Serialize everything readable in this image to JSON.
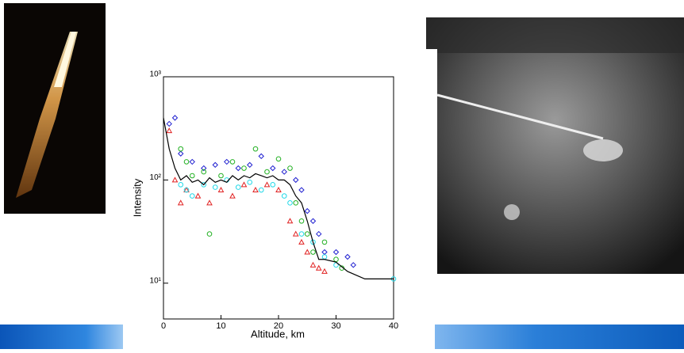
{
  "chart_data": {
    "type": "scatter",
    "x_label": "Altitude, km",
    "y_label": "Intensity",
    "xlim": [
      0,
      40
    ],
    "xticks": [
      0,
      10,
      20,
      30,
      40
    ],
    "ylim": [
      4.5,
      1000
    ],
    "yscale": "log",
    "yticks": [
      {
        "value": 10,
        "label": "10¹"
      },
      {
        "value": 100,
        "label": "10²"
      },
      {
        "value": 1000,
        "label": "10³"
      }
    ],
    "series": [
      {
        "color": "#1f1fd0",
        "marker": "diamond",
        "x": [
          1,
          2,
          3,
          5,
          7,
          9,
          11,
          13,
          15,
          17,
          19,
          21,
          23,
          24,
          25,
          26,
          27,
          28,
          30,
          32,
          33
        ],
        "values": [
          350,
          400,
          180,
          150,
          130,
          140,
          150,
          130,
          140,
          170,
          130,
          120,
          100,
          80,
          50,
          40,
          30,
          20,
          20,
          18,
          15
        ]
      },
      {
        "color": "#e02020",
        "marker": "triangle",
        "x": [
          1,
          2,
          3,
          4,
          6,
          8,
          10,
          12,
          14,
          16,
          18,
          20,
          22,
          23,
          24,
          25,
          26,
          27,
          28
        ],
        "values": [
          300,
          100,
          60,
          80,
          70,
          60,
          80,
          70,
          90,
          80,
          90,
          80,
          40,
          30,
          25,
          20,
          15,
          14,
          13
        ]
      },
      {
        "color": "#22b022",
        "marker": "circle",
        "x": [
          3,
          4,
          5,
          7,
          8,
          10,
          12,
          14,
          16,
          18,
          20,
          22,
          23,
          24,
          25,
          26,
          28,
          30,
          31
        ],
        "values": [
          200,
          150,
          110,
          120,
          30,
          110,
          150,
          130,
          200,
          120,
          160,
          130,
          60,
          40,
          30,
          20,
          25,
          17,
          14
        ]
      },
      {
        "color": "#22d8e8",
        "marker": "circle",
        "x": [
          3,
          4,
          5,
          7,
          9,
          11,
          13,
          15,
          17,
          19,
          21,
          22,
          24,
          26,
          28,
          30,
          40
        ],
        "values": [
          90,
          80,
          70,
          90,
          85,
          100,
          85,
          95,
          80,
          90,
          70,
          60,
          30,
          25,
          18,
          15,
          11
        ]
      },
      {
        "color": "#000000",
        "marker": "line",
        "x": [
          0,
          1,
          2,
          3,
          4,
          5,
          6,
          7,
          8,
          9,
          10,
          11,
          12,
          13,
          14,
          15,
          16,
          17,
          18,
          19,
          20,
          21,
          22,
          23,
          24,
          25,
          26,
          27,
          28,
          30,
          32,
          35,
          40
        ],
        "values": [
          400,
          200,
          130,
          100,
          110,
          95,
          100,
          90,
          105,
          95,
          100,
          95,
          110,
          100,
          110,
          105,
          115,
          110,
          105,
          110,
          100,
          100,
          90,
          70,
          60,
          40,
          25,
          17,
          17,
          16,
          13,
          11,
          11
        ]
      }
    ]
  }
}
